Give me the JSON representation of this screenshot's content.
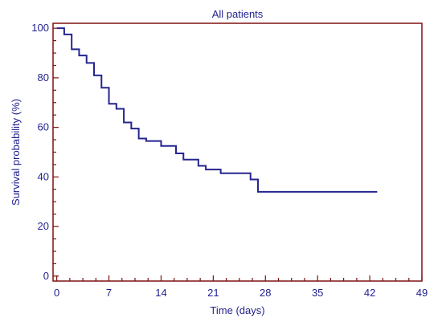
{
  "chart_data": {
    "type": "line",
    "step": true,
    "title": "All patients",
    "xlabel": "Time (days)",
    "ylabel": "Survival probability (%)",
    "xlim": [
      -0.5,
      49
    ],
    "ylim": [
      -2,
      102
    ],
    "xticks": [
      0,
      7,
      14,
      21,
      28,
      35,
      42,
      49
    ],
    "yticks": [
      0,
      20,
      40,
      60,
      80,
      100
    ],
    "x_minor_step": 1.75,
    "y_minor_step": 5,
    "grid": false,
    "series": [
      {
        "color": "#25258f",
        "points": [
          [
            0,
            100
          ],
          [
            1,
            100
          ],
          [
            1,
            97.5
          ],
          [
            2,
            97.5
          ],
          [
            2,
            91.5
          ],
          [
            3,
            91.5
          ],
          [
            3,
            89
          ],
          [
            4,
            89
          ],
          [
            4,
            86
          ],
          [
            5,
            86
          ],
          [
            5,
            81
          ],
          [
            6,
            81
          ],
          [
            6,
            76
          ],
          [
            7,
            76
          ],
          [
            7,
            69.5
          ],
          [
            8,
            69.5
          ],
          [
            8,
            67.5
          ],
          [
            9,
            67.5
          ],
          [
            9,
            62
          ],
          [
            10,
            62
          ],
          [
            10,
            59.5
          ],
          [
            11,
            59.5
          ],
          [
            11,
            55.5
          ],
          [
            12,
            55.5
          ],
          [
            12,
            54.5
          ],
          [
            14,
            54.5
          ],
          [
            14,
            52.5
          ],
          [
            16,
            52.5
          ],
          [
            16,
            49.5
          ],
          [
            17,
            49.5
          ],
          [
            17,
            47
          ],
          [
            19,
            47
          ],
          [
            19,
            44.5
          ],
          [
            20,
            44.5
          ],
          [
            20,
            43
          ],
          [
            22,
            43
          ],
          [
            22,
            41.5
          ],
          [
            26,
            41.5
          ],
          [
            26,
            39
          ],
          [
            27,
            39
          ],
          [
            27,
            34
          ],
          [
            43,
            34
          ]
        ]
      }
    ],
    "frame_color": "#7f1010",
    "text_color": "#1f1f8f"
  }
}
